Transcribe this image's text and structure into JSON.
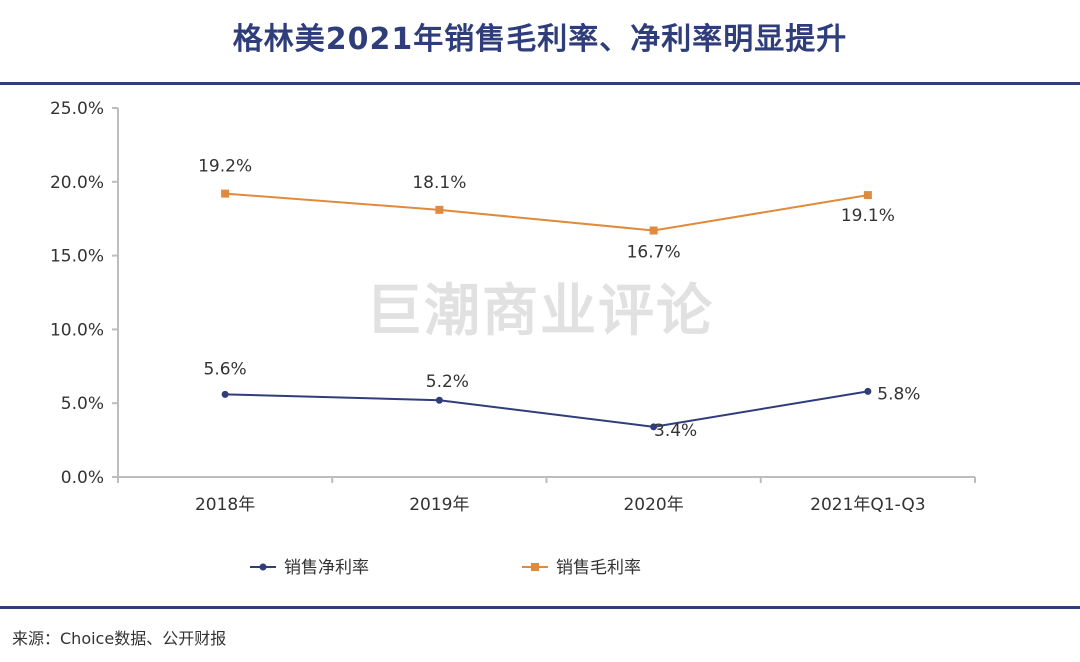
{
  "title": "格林美2021年销售毛利率、净利率明显提升",
  "watermark": "巨潮商业评论",
  "source": "来源：Choice数据、公开财报",
  "chart_data": {
    "type": "line",
    "categories": [
      "2018年",
      "2019年",
      "2020年",
      "2021年Q1-Q3"
    ],
    "yticks": [
      "0.0%",
      "5.0%",
      "10.0%",
      "15.0%",
      "20.0%",
      "25.0%"
    ],
    "ylim": [
      0,
      25
    ],
    "series": [
      {
        "name": "销售净利率",
        "values": [
          5.6,
          5.2,
          3.4,
          5.8
        ],
        "labels": [
          "5.6%",
          "5.2%",
          "3.4%",
          "5.8%"
        ],
        "color": "#2f3d7a",
        "marker": "circle"
      },
      {
        "name": "销售毛利率",
        "values": [
          19.2,
          18.1,
          16.7,
          19.1
        ],
        "labels": [
          "19.2%",
          "18.1%",
          "16.7%",
          "19.1%"
        ],
        "color": "#e08a3c",
        "marker": "square"
      }
    ]
  }
}
